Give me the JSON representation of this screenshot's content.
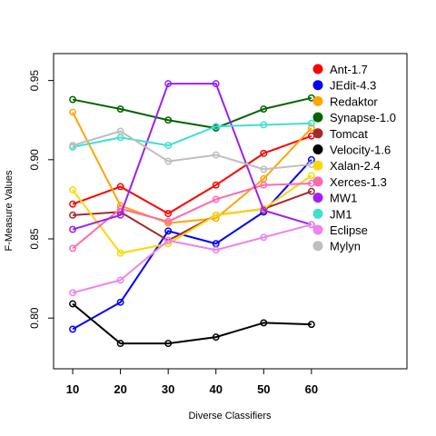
{
  "chart_data": {
    "type": "line",
    "title": "",
    "xlabel": "Diverse Classifiers",
    "ylabel": "F-Measure Values",
    "x": [
      10,
      20,
      30,
      40,
      50,
      60
    ],
    "x_ticks": [
      "10",
      "20",
      "30",
      "40",
      "50",
      "60"
    ],
    "xlim": [
      6,
      80
    ],
    "ylim": [
      0.768,
      0.967
    ],
    "y_ticks": [
      "0.80",
      "0.85",
      "0.90",
      "0.95"
    ],
    "grid": false,
    "legend_position": "top-right",
    "series": [
      {
        "name": "Ant-1.7",
        "color": "#ff0000",
        "values": [
          0.872,
          0.883,
          0.866,
          0.884,
          0.904,
          0.915
        ]
      },
      {
        "name": " JEdit-4.3",
        "color": "#0000ff",
        "values": [
          0.793,
          0.81,
          0.855,
          0.847,
          0.867,
          0.9
        ]
      },
      {
        "name": "Redaktor",
        "color": "#ffa500",
        "values": [
          0.93,
          0.871,
          0.86,
          0.863,
          0.888,
          0.92
        ]
      },
      {
        "name": "Synapse-1.0",
        "color": "#006400",
        "values": [
          0.938,
          0.932,
          0.925,
          0.92,
          0.932,
          0.939
        ]
      },
      {
        "name": "Tomcat",
        "color": "#a52a2a",
        "values": [
          0.865,
          0.867,
          0.849,
          0.865,
          0.869,
          0.88
        ]
      },
      {
        "name": "Velocity-1.6",
        "color": "#000000",
        "values": [
          0.809,
          0.784,
          0.784,
          0.788,
          0.797,
          0.796
        ]
      },
      {
        "name": "Xalan-2.4",
        "color": "#ffd700",
        "values": [
          0.881,
          0.841,
          0.847,
          0.865,
          0.869,
          0.89
        ]
      },
      {
        "name": "Xerces-1.3",
        "color": "#ff69b4",
        "values": [
          0.844,
          0.869,
          0.861,
          0.875,
          0.884,
          0.885
        ]
      },
      {
        "name": "MW1",
        "color": "#a020f0",
        "values": [
          0.856,
          0.865,
          0.948,
          0.948,
          0.868,
          0.859
        ]
      },
      {
        "name": "JM1",
        "color": "#40e0d0",
        "values": [
          0.908,
          0.914,
          0.909,
          0.921,
          0.922,
          0.923
        ]
      },
      {
        "name": "Eclipse",
        "color": "#ee82ee",
        "values": [
          0.816,
          0.824,
          0.849,
          0.843,
          0.851,
          0.859
        ]
      },
      {
        "name": "Mylyn",
        "color": "#bebebe",
        "values": [
          0.909,
          0.918,
          0.899,
          0.903,
          0.894,
          0.897
        ]
      }
    ]
  }
}
